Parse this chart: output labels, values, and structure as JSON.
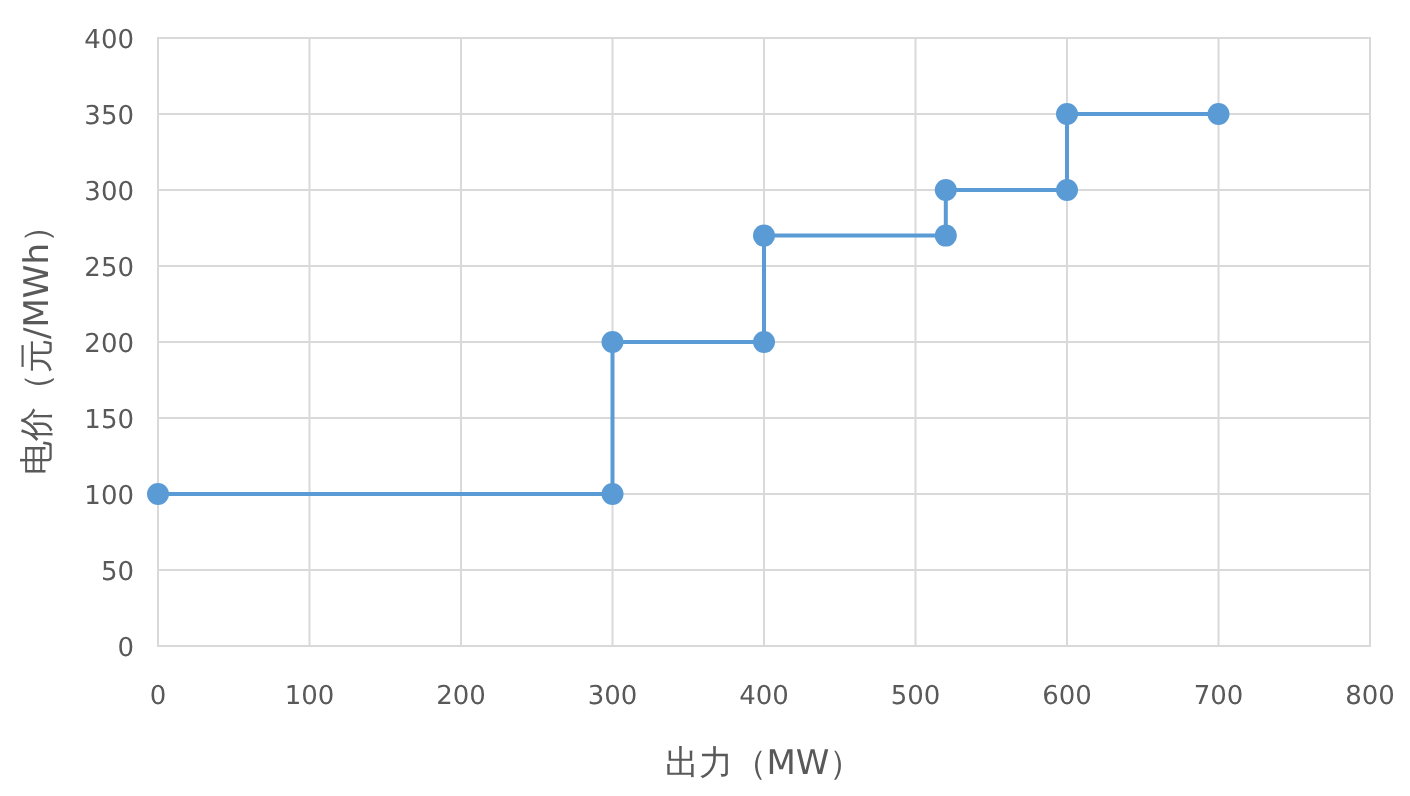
{
  "chart_data": {
    "type": "line",
    "xlabel": "出力（MW）",
    "ylabel": "电价（元/MWh）",
    "x": [
      0,
      300,
      300,
      400,
      400,
      520,
      520,
      600,
      600,
      700
    ],
    "series": [
      {
        "color": "#5b9bd5",
        "values": [
          100,
          100,
          200,
          200,
          270,
          270,
          300,
          300,
          350,
          350
        ]
      }
    ],
    "xlim": [
      0,
      800
    ],
    "ylim": [
      0,
      400
    ],
    "xticks": [
      0,
      100,
      200,
      300,
      400,
      500,
      600,
      700,
      800
    ],
    "yticks": [
      0,
      50,
      100,
      150,
      200,
      250,
      300,
      350,
      400
    ],
    "grid": true,
    "marker": "circle",
    "line_style": "solid"
  }
}
